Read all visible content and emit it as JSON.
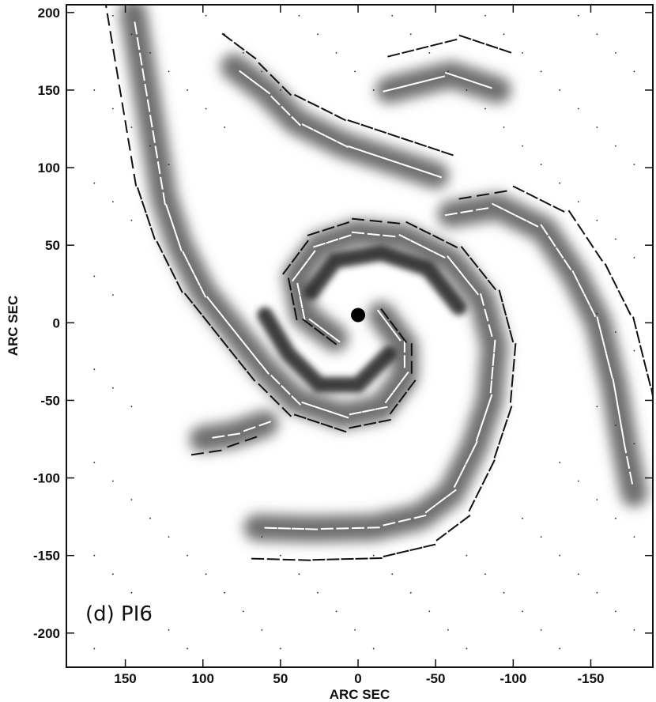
{
  "figure": {
    "panel_label": "(d) PI6",
    "xlabel": "ARC SEC",
    "ylabel": "ARC SEC",
    "x_ticks": [
      "150",
      "100",
      "50",
      "0",
      "-50",
      "-100",
      "-150"
    ],
    "y_ticks": [
      "200",
      "150",
      "100",
      "50",
      "0",
      "-50",
      "-100",
      "-150",
      "-200"
    ],
    "x_tick_values": [
      150,
      100,
      50,
      0,
      -50,
      -100,
      -150
    ],
    "y_tick_values": [
      200,
      150,
      100,
      50,
      0,
      -50,
      -100,
      -150,
      -200
    ],
    "xlim": [
      188,
      -190
    ],
    "ylim": [
      -222,
      205
    ],
    "map": {
      "type": "grayscale polarized-intensity map with polarization vectors",
      "structure": "two-armed spiral galaxy",
      "vector_colors": [
        "#111111",
        "#ffffff"
      ],
      "background": "#ffffff",
      "emission_color": "#3a3a3a"
    }
  }
}
